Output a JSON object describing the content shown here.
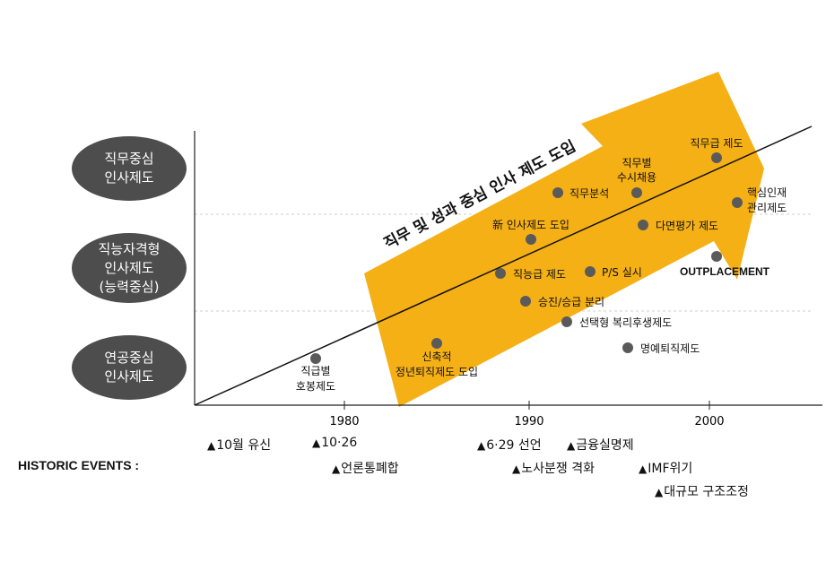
{
  "categories": [
    {
      "id": "job",
      "label": "직무중심\n인사제도"
    },
    {
      "id": "competency",
      "label": "직능자격형\n인사제도\n(능력중심)"
    },
    {
      "id": "seniority",
      "label": "연공중심\n인사제도"
    }
  ],
  "arrow_label": "직무 및 성과 중심 인사 제도 도입",
  "years": [
    "1980",
    "1990",
    "2000"
  ],
  "milestones": [
    {
      "label": "직급별",
      "label2": "호봉제도"
    },
    {
      "label": "신축적",
      "label2": "정년퇴직제도 도입"
    },
    {
      "label": "직능급 제도"
    },
    {
      "label": "新 인사제도 도입"
    },
    {
      "label": "승진/승급 분리"
    },
    {
      "label": "직무분석"
    },
    {
      "label": "P/S 실시"
    },
    {
      "label": "선택형 복리후생제도"
    },
    {
      "label": "직무별",
      "label2": "수시채용"
    },
    {
      "label": "다면평가 제도"
    },
    {
      "label": "명예퇴직제도"
    },
    {
      "label": "직무급 제도"
    },
    {
      "label": "OUTPLACEMENT"
    },
    {
      "label": "핵심인재",
      "label2": "관리제도"
    }
  ],
  "historic_events": {
    "title": "HISTORIC EVENTS :",
    "marker": "▲",
    "items": [
      {
        "label": "10월 유신"
      },
      {
        "label": "10·26"
      },
      {
        "label": "언론통폐합"
      },
      {
        "label": "6·29 선언"
      },
      {
        "label": "노사분쟁 격화"
      },
      {
        "label": "금융실명제"
      },
      {
        "label": "IMF위기"
      },
      {
        "label": "대규모 구조조정"
      }
    ]
  },
  "colors": {
    "arrow": "#f5b016",
    "ellipse": "#4d4d4d",
    "dot": "#5a5a5a"
  }
}
